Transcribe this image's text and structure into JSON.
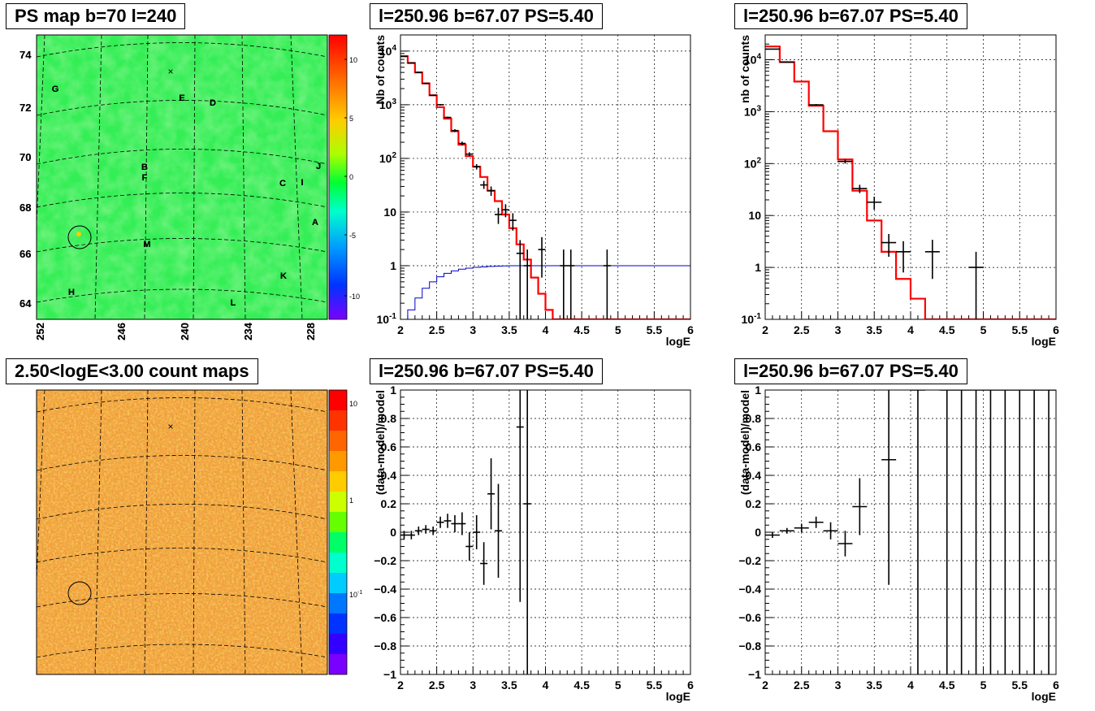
{
  "colors": {
    "model_red": "#ff0000",
    "exposure_blue": "#0000cc",
    "data_black": "#000000",
    "grid": "#000000"
  },
  "panels": [
    {
      "id": "ps-map",
      "title": "PS map b=70 l=240"
    },
    {
      "id": "spectrum-left",
      "title": "l=250.96 b=67.07 PS=5.40"
    },
    {
      "id": "spectrum-right",
      "title": "l=250.96 b=67.07 PS=5.40"
    },
    {
      "id": "count-map",
      "title": "2.50<logE<3.00 count maps"
    },
    {
      "id": "resid-left",
      "title": "l=250.96 b=67.07 PS=5.40"
    },
    {
      "id": "resid-right",
      "title": "l=250.96 b=67.07 PS=5.40"
    }
  ],
  "skymap": {
    "b_ticks": [
      "74",
      "72",
      "70",
      "68",
      "66",
      "64"
    ],
    "l_ticks": [
      "252",
      "246",
      "240",
      "234",
      "228"
    ],
    "letters": [
      "G",
      "E",
      "D",
      "B",
      "F",
      "C",
      "I",
      "J",
      "A",
      "M",
      "K",
      "H",
      "L"
    ],
    "ps_colorbar_ticks": [
      "10",
      "5",
      "0",
      "-5",
      "-10"
    ],
    "count_colorbar_ticks": [
      "10",
      "1",
      "10",
      "-1"
    ]
  },
  "chart_data": [
    {
      "type": "line",
      "title": "l=250.96 b=67.07 PS=5.40",
      "xlabel": "logE",
      "ylabel": "Nb of counts",
      "xlim": [
        2,
        6
      ],
      "ylim": [
        0.1,
        20000
      ],
      "log_y": true,
      "grid": true,
      "x_ticks": [
        "2",
        "2.5",
        "3",
        "3.5",
        "4",
        "4.5",
        "5",
        "5.5",
        "6"
      ],
      "y_ticks": [
        "10^{4}",
        "10^{3}",
        "10^{2}",
        "10",
        "1",
        "10^{-1}"
      ],
      "model_step": {
        "edges": [
          2,
          2.1,
          2.2,
          2.3,
          2.4,
          2.5,
          2.6,
          2.7,
          2.8,
          2.9,
          3.0,
          3.1,
          3.2,
          3.3,
          3.4,
          3.5,
          3.6,
          3.7,
          3.8,
          3.9,
          4.0,
          4.1,
          6.0
        ],
        "values": [
          8000,
          6000,
          4000,
          2500,
          1500,
          900,
          550,
          320,
          180,
          110,
          70,
          45,
          25,
          16,
          9,
          5,
          2.5,
          1.3,
          0.6,
          0.3,
          0.15,
          0.1
        ]
      },
      "exposure_step": {
        "edges": [
          2,
          2.1,
          2.2,
          2.3,
          2.4,
          2.5,
          2.6,
          2.7,
          2.8,
          2.9,
          3.0,
          3.1,
          3.2,
          3.3,
          3.4,
          3.5,
          6.0
        ],
        "values": [
          0.1,
          0.15,
          0.25,
          0.38,
          0.5,
          0.62,
          0.72,
          0.8,
          0.86,
          0.9,
          0.93,
          0.95,
          0.97,
          0.98,
          0.99,
          1.0
        ]
      },
      "points": [
        {
          "x": 2.05,
          "y": 8000,
          "lo": 7900,
          "hi": 8100
        },
        {
          "x": 2.15,
          "y": 6000,
          "lo": 5900,
          "hi": 6100
        },
        {
          "x": 2.25,
          "y": 4000,
          "lo": 3900,
          "hi": 4100
        },
        {
          "x": 2.35,
          "y": 2500,
          "lo": 2450,
          "hi": 2550
        },
        {
          "x": 2.45,
          "y": 1500,
          "lo": 1460,
          "hi": 1540
        },
        {
          "x": 2.55,
          "y": 1000,
          "lo": 970,
          "hi": 1030
        },
        {
          "x": 2.65,
          "y": 580,
          "lo": 560,
          "hi": 600
        },
        {
          "x": 2.75,
          "y": 330,
          "lo": 310,
          "hi": 350
        },
        {
          "x": 2.85,
          "y": 190,
          "lo": 175,
          "hi": 205
        },
        {
          "x": 2.95,
          "y": 120,
          "lo": 110,
          "hi": 130
        },
        {
          "x": 3.05,
          "y": 70,
          "lo": 62,
          "hi": 78
        },
        {
          "x": 3.15,
          "y": 32,
          "lo": 27,
          "hi": 38
        },
        {
          "x": 3.25,
          "y": 25,
          "lo": 20,
          "hi": 30
        },
        {
          "x": 3.35,
          "y": 9,
          "lo": 6,
          "hi": 12
        },
        {
          "x": 3.45,
          "y": 11,
          "lo": 8,
          "hi": 14
        },
        {
          "x": 3.55,
          "y": 7,
          "lo": 4.5,
          "hi": 9.5
        },
        {
          "x": 3.65,
          "y": 1.7,
          "lo": 0.1,
          "hi": 3.0
        },
        {
          "x": 3.75,
          "y": 1.0,
          "lo": 0.1,
          "hi": 2.0
        },
        {
          "x": 3.95,
          "y": 2.0,
          "lo": 0.6,
          "hi": 3.4
        },
        {
          "x": 4.25,
          "y": 1.0,
          "lo": 0.1,
          "hi": 2.0
        },
        {
          "x": 4.35,
          "y": 1.0,
          "lo": 0.1,
          "hi": 2.0
        },
        {
          "x": 4.85,
          "y": 1.0,
          "lo": 0.1,
          "hi": 2.0
        }
      ]
    },
    {
      "type": "line",
      "title": "l=250.96 b=67.07 PS=5.40",
      "xlabel": "logE",
      "ylabel": "nb of counts",
      "xlim": [
        2,
        6
      ],
      "ylim": [
        0.1,
        30000
      ],
      "log_y": true,
      "grid": true,
      "x_ticks": [
        "2",
        "2.5",
        "3",
        "3.5",
        "4",
        "4.5",
        "5",
        "5.5",
        "6"
      ],
      "y_ticks": [
        "10^{4}",
        "10^{3}",
        "10^{2}",
        "10",
        "1",
        "10^{-1}"
      ],
      "model_step": {
        "edges": [
          2,
          2.2,
          2.4,
          2.6,
          2.8,
          3.0,
          3.2,
          3.4,
          3.6,
          3.8,
          4.0,
          4.2,
          6.0
        ],
        "values": [
          18000,
          9000,
          3800,
          1300,
          420,
          120,
          30,
          8,
          2,
          0.6,
          0.25,
          0.1
        ]
      },
      "points": [
        {
          "x": 2.1,
          "y": 16000,
          "lo": 15800,
          "hi": 16200
        },
        {
          "x": 2.3,
          "y": 9000,
          "lo": 8800,
          "hi": 9200
        },
        {
          "x": 2.7,
          "y": 1350,
          "lo": 1300,
          "hi": 1400
        },
        {
          "x": 3.1,
          "y": 110,
          "lo": 100,
          "hi": 120
        },
        {
          "x": 3.3,
          "y": 33,
          "lo": 27,
          "hi": 39
        },
        {
          "x": 3.5,
          "y": 18,
          "lo": 13,
          "hi": 23
        },
        {
          "x": 3.7,
          "y": 3,
          "lo": 1.6,
          "hi": 4.4
        },
        {
          "x": 3.9,
          "y": 2,
          "lo": 0.8,
          "hi": 3.2
        },
        {
          "x": 4.3,
          "y": 2,
          "lo": 0.6,
          "hi": 3.4
        },
        {
          "x": 4.9,
          "y": 1,
          "lo": 0.1,
          "hi": 2.0
        }
      ]
    },
    {
      "type": "scatter",
      "title": "l=250.96 b=67.07 PS=5.40",
      "xlabel": "logE",
      "ylabel": "(data-model)/model",
      "xlim": [
        2,
        6
      ],
      "ylim": [
        -1,
        1
      ],
      "grid": true,
      "x_ticks": [
        "2",
        "2.5",
        "3",
        "3.5",
        "4",
        "4.5",
        "5",
        "5.5",
        "6"
      ],
      "y_ticks": [
        "1",
        "0.8",
        "0.6",
        "0.4",
        "0.2",
        "0",
        "−0.2",
        "−0.4",
        "−0.6",
        "−0.8",
        "−1"
      ],
      "points": [
        {
          "x": 2.05,
          "y": -0.02,
          "lo": -0.05,
          "hi": 0.01
        },
        {
          "x": 2.15,
          "y": -0.02,
          "lo": -0.05,
          "hi": 0.01
        },
        {
          "x": 2.25,
          "y": 0.01,
          "lo": -0.02,
          "hi": 0.04
        },
        {
          "x": 2.35,
          "y": 0.02,
          "lo": -0.01,
          "hi": 0.05
        },
        {
          "x": 2.45,
          "y": 0.01,
          "lo": -0.02,
          "hi": 0.04
        },
        {
          "x": 2.55,
          "y": 0.07,
          "lo": 0.03,
          "hi": 0.11
        },
        {
          "x": 2.65,
          "y": 0.08,
          "lo": 0.03,
          "hi": 0.13
        },
        {
          "x": 2.75,
          "y": 0.06,
          "lo": 0.0,
          "hi": 0.12
        },
        {
          "x": 2.85,
          "y": 0.06,
          "lo": -0.02,
          "hi": 0.14
        },
        {
          "x": 2.95,
          "y": -0.1,
          "lo": -0.2,
          "hi": 0.0
        },
        {
          "x": 3.05,
          "y": 0.0,
          "lo": -0.12,
          "hi": 0.12
        },
        {
          "x": 3.15,
          "y": -0.22,
          "lo": -0.37,
          "hi": -0.07
        },
        {
          "x": 3.25,
          "y": 0.27,
          "lo": 0.02,
          "hi": 0.52
        },
        {
          "x": 3.35,
          "y": 0.01,
          "lo": -0.32,
          "hi": 0.34
        },
        {
          "x": 3.65,
          "y": 0.74,
          "lo": -0.49,
          "hi": 1.0
        },
        {
          "x": 3.75,
          "y": 0.2,
          "lo": -1.0,
          "hi": 1.0
        }
      ]
    },
    {
      "type": "scatter",
      "title": "l=250.96 b=67.07 PS=5.40",
      "xlabel": "logE",
      "ylabel": "(data-model)/model",
      "xlim": [
        2,
        6
      ],
      "ylim": [
        -1,
        1
      ],
      "grid": true,
      "x_ticks": [
        "2",
        "2.5",
        "3",
        "3.5",
        "4",
        "4.5",
        "5",
        "5.5",
        "6"
      ],
      "y_ticks": [
        "1",
        "0.8",
        "0.6",
        "0.4",
        "0.2",
        "0",
        "−0.2",
        "−0.4",
        "−0.6",
        "−0.8",
        "−1"
      ],
      "points": [
        {
          "x": 2.1,
          "y": -0.02,
          "lo": -0.04,
          "hi": 0.0
        },
        {
          "x": 2.3,
          "y": 0.01,
          "lo": -0.01,
          "hi": 0.03
        },
        {
          "x": 2.5,
          "y": 0.03,
          "lo": 0.0,
          "hi": 0.06
        },
        {
          "x": 2.7,
          "y": 0.07,
          "lo": 0.03,
          "hi": 0.11
        },
        {
          "x": 2.9,
          "y": 0.01,
          "lo": -0.05,
          "hi": 0.07
        },
        {
          "x": 3.1,
          "y": -0.08,
          "lo": -0.17,
          "hi": 0.01
        },
        {
          "x": 3.3,
          "y": 0.18,
          "lo": -0.02,
          "hi": 0.38
        },
        {
          "x": 3.7,
          "y": 0.51,
          "lo": -0.37,
          "hi": 1.0
        },
        {
          "x": 4.1,
          "y": 1.0,
          "lo": -1.0,
          "hi": 1.0
        },
        {
          "x": 4.5,
          "y": 1.0,
          "lo": -1.0,
          "hi": 1.0
        },
        {
          "x": 4.7,
          "y": 1.0,
          "lo": -1.0,
          "hi": 1.0
        },
        {
          "x": 4.9,
          "y": 1.0,
          "lo": -1.0,
          "hi": 1.0
        },
        {
          "x": 5.1,
          "y": 1.0,
          "lo": -1.0,
          "hi": 1.0
        },
        {
          "x": 5.3,
          "y": 1.0,
          "lo": -1.0,
          "hi": 1.0
        },
        {
          "x": 5.5,
          "y": 1.0,
          "lo": -1.0,
          "hi": 1.0
        },
        {
          "x": 5.7,
          "y": 1.0,
          "lo": -1.0,
          "hi": 1.0
        },
        {
          "x": 5.9,
          "y": 1.0,
          "lo": -1.0,
          "hi": 1.0
        }
      ]
    }
  ]
}
